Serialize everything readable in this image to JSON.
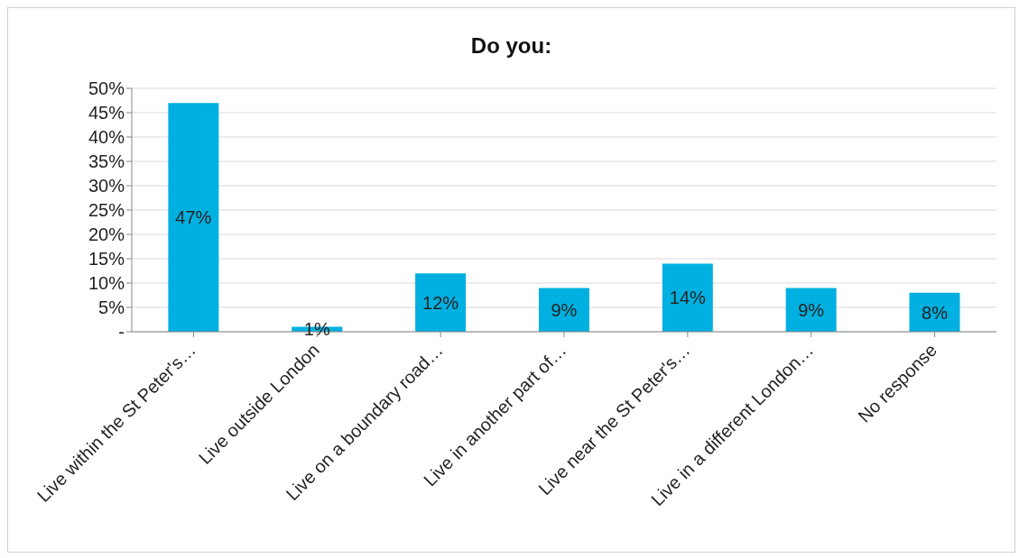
{
  "chart_data": {
    "type": "bar",
    "title": "Do you:",
    "categories": [
      "Live within the St Peter's…",
      "Live outside London",
      "Live on a boundary road…",
      "Live in another part of…",
      "Live near the St Peter's…",
      "Live in a different London…",
      "No response"
    ],
    "values": [
      47,
      1,
      12,
      9,
      14,
      9,
      8
    ],
    "color": "#00b0e0",
    "ylim": [
      0,
      50
    ],
    "yticks": [
      {
        "value": 0,
        "label": "-"
      },
      {
        "value": 5,
        "label": "5%"
      },
      {
        "value": 10,
        "label": "10%"
      },
      {
        "value": 15,
        "label": "15%"
      },
      {
        "value": 20,
        "label": "20%"
      },
      {
        "value": 25,
        "label": "25%"
      },
      {
        "value": 30,
        "label": "30%"
      },
      {
        "value": 35,
        "label": "35%"
      },
      {
        "value": 40,
        "label": "40%"
      },
      {
        "value": 45,
        "label": "45%"
      },
      {
        "value": 50,
        "label": "50%"
      }
    ],
    "value_labels": [
      "47%",
      "1%",
      "12%",
      "9%",
      "14%",
      "9%",
      "8%"
    ],
    "grid": "y",
    "legend": false
  }
}
